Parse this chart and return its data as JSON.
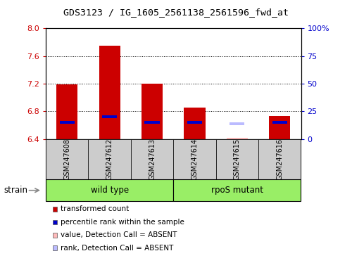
{
  "title": "GDS3123 / IG_1605_2561138_2561596_fwd_at",
  "samples": [
    "GSM247608",
    "GSM247612",
    "GSM247613",
    "GSM247614",
    "GSM247615",
    "GSM247616"
  ],
  "red_values": [
    7.19,
    7.75,
    7.2,
    6.85,
    null,
    6.73
  ],
  "blue_values_pct": [
    15,
    20,
    15,
    15,
    null,
    15
  ],
  "absent_value": [
    null,
    null,
    null,
    null,
    6.42,
    null
  ],
  "absent_rank_pct": [
    null,
    null,
    null,
    null,
    14,
    null
  ],
  "ylim": [
    6.4,
    8.0
  ],
  "yticks_left": [
    6.4,
    6.8,
    7.2,
    7.6,
    8.0
  ],
  "yticks_right": [
    0,
    25,
    50,
    75,
    100
  ],
  "group1_label": "wild type",
  "group2_label": "rpoS mutant",
  "group1_indices": [
    0,
    1,
    2
  ],
  "group2_indices": [
    3,
    4,
    5
  ],
  "strain_label": "strain",
  "legend_items": [
    {
      "color": "#cc0000",
      "label": "transformed count"
    },
    {
      "color": "#0000cc",
      "label": "percentile rank within the sample"
    },
    {
      "color": "#ffbbbb",
      "label": "value, Detection Call = ABSENT"
    },
    {
      "color": "#bbbbff",
      "label": "rank, Detection Call = ABSENT"
    }
  ],
  "bar_width": 0.5,
  "blue_bar_width": 0.35,
  "plot_bg": "#ffffff",
  "group_bg": "#99ee66",
  "sample_bg": "#cccccc",
  "border_color": "#000000"
}
